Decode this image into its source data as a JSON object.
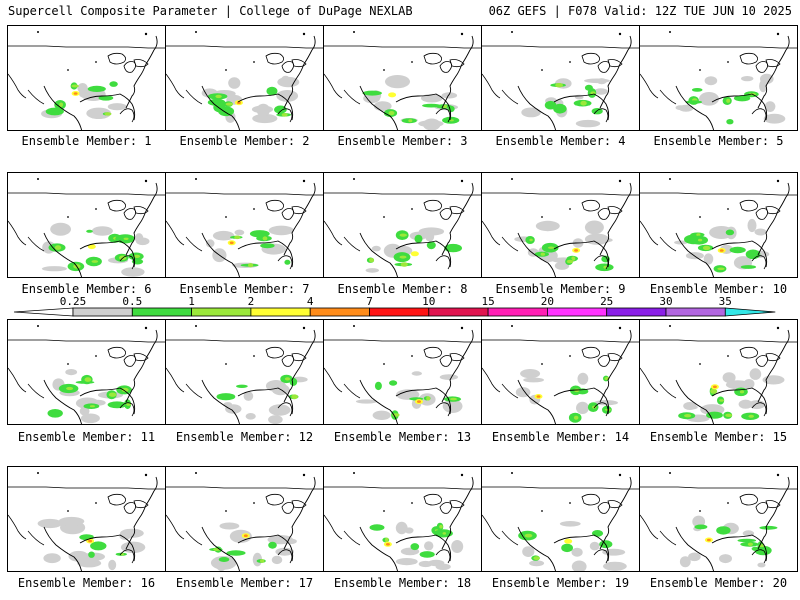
{
  "header": {
    "left": "Supercell Composite Parameter | College of DuPage NEXLAB",
    "right": "06Z GEFS | F078 Valid: 12Z TUE JUN 10 2025"
  },
  "members": [
    "Ensemble Member: 1",
    "Ensemble Member: 2",
    "Ensemble Member: 3",
    "Ensemble Member: 4",
    "Ensemble Member: 5",
    "Ensemble Member: 6",
    "Ensemble Member: 7",
    "Ensemble Member: 8",
    "Ensemble Member: 9",
    "Ensemble Member: 10",
    "Ensemble Member: 11",
    "Ensemble Member: 12",
    "Ensemble Member: 13",
    "Ensemble Member: 14",
    "Ensemble Member: 15",
    "Ensemble Member: 16",
    "Ensemble Member: 17",
    "Ensemble Member: 18",
    "Ensemble Member: 19",
    "Ensemble Member: 20"
  ],
  "legend": {
    "thresholds": [
      "0.25",
      "0.5",
      "1",
      "2",
      "4",
      "7",
      "10",
      "15",
      "20",
      "25",
      "30",
      "35"
    ],
    "colors": [
      "#cfcfcf",
      "#3fdc3f",
      "#9be83a",
      "#ffff33",
      "#ff8c1a",
      "#ff1414",
      "#e0144f",
      "#ff1fb4",
      "#ff33ff",
      "#8a1fe6",
      "#b266e0",
      "#33e6e6"
    ]
  }
}
